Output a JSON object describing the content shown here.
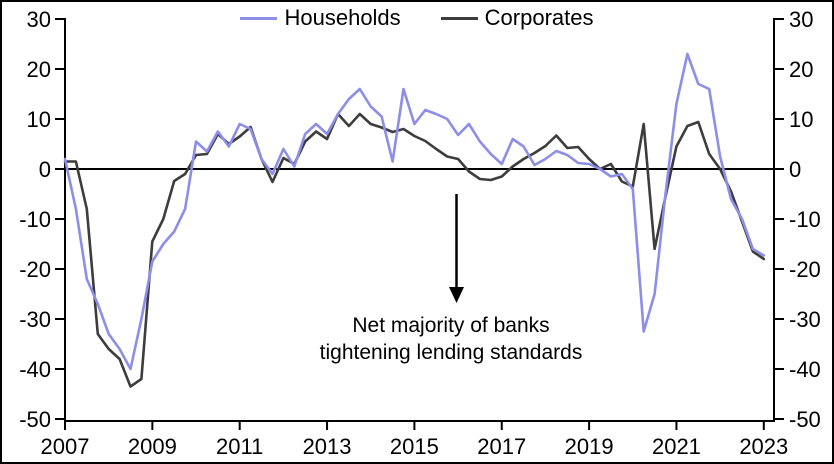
{
  "chart_data": {
    "type": "line",
    "frequency": "quarterly",
    "start_year": 2007,
    "x_tick_years": [
      2007,
      2009,
      2011,
      2013,
      2015,
      2017,
      2019,
      2021,
      2023
    ],
    "y_ticks": [
      30,
      20,
      10,
      0,
      -10,
      -20,
      -30,
      -40,
      -50
    ],
    "ylim": [
      -50,
      30
    ],
    "grid": false,
    "zero_line": true,
    "legend_position": "top-center",
    "axis_color": "#000000",
    "series": [
      {
        "name": "Households",
        "color": "#8C8EE8",
        "values": [
          2,
          -8,
          -22,
          -27,
          -33,
          -36,
          -40,
          -30,
          -18.5,
          -15,
          -12.5,
          -8,
          5.5,
          3.5,
          7.5,
          4.5,
          9,
          8,
          2,
          -1,
          4,
          0.5,
          7,
          9,
          7,
          11,
          14,
          16,
          12.5,
          10.5,
          1.5,
          16,
          9,
          11.8,
          11,
          10,
          6.8,
          9,
          5.5,
          3,
          1,
          6,
          4.5,
          0.8,
          2,
          3.6,
          2.8,
          1.2,
          1,
          0,
          -1.5,
          -1,
          -4,
          -32.5,
          -25,
          -5,
          13,
          23,
          17,
          16,
          2.5,
          -6,
          -10,
          -16,
          -17.3
        ]
      },
      {
        "name": "Corporates",
        "color": "#3D3D3D",
        "values": [
          1.5,
          1.5,
          -8,
          -33,
          -36,
          -38,
          -43.5,
          -42,
          -14.5,
          -10,
          -2.4,
          -1,
          2.8,
          3,
          7,
          5,
          6.5,
          8.4,
          2,
          -2.6,
          2.2,
          1,
          5.5,
          7.5,
          6,
          11,
          8.6,
          11,
          9,
          8.3,
          7.4,
          8,
          6.6,
          5.6,
          4,
          2.5,
          2,
          -0.5,
          -2,
          -2.2,
          -1.5,
          0.5,
          2,
          3.2,
          4.6,
          6.7,
          4.2,
          4.4,
          2,
          0,
          1,
          -2.5,
          -3.5,
          9,
          -16,
          -5.5,
          4.5,
          8.6,
          9.4,
          3,
          0,
          -4.5,
          -10.5,
          -16.5,
          -18
        ]
      }
    ],
    "annotation": {
      "line1": "Net majority of banks",
      "line2": "tightening lending standards",
      "arrow": "down"
    }
  }
}
